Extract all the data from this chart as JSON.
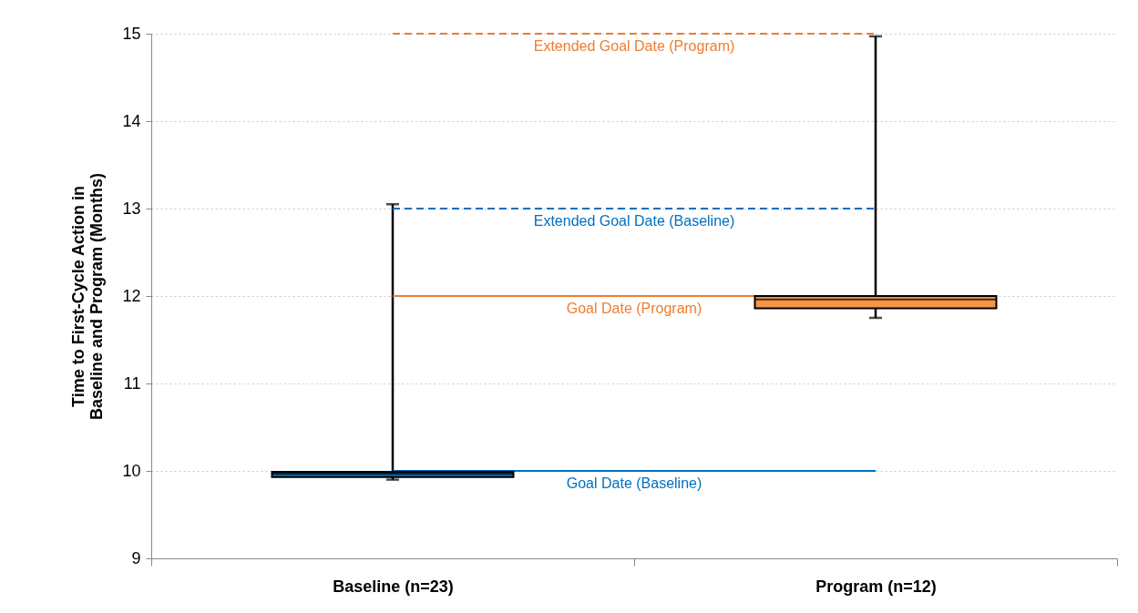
{
  "chart_data": {
    "type": "box",
    "ylabel": "Time to First-Cycle Action in Baseline and Program (Months)",
    "categories": [
      "Baseline (n=23)",
      "Program (n=12)"
    ],
    "boxes": [
      {
        "low": 9.9,
        "q1": 9.93,
        "median": 9.97,
        "q3": 9.99,
        "high": 13.05
      },
      {
        "low": 11.75,
        "q1": 11.86,
        "median": 11.96,
        "q3": 12.0,
        "high": 14.97
      }
    ],
    "colors": [
      "#0070c0",
      "#f79646"
    ],
    "ylim": [
      9,
      15
    ],
    "yticks": [
      9,
      10,
      11,
      12,
      13,
      14,
      15
    ],
    "grid": "y",
    "ref_lines": [
      {
        "axis": "y",
        "value": 15,
        "label": "Extended Goal Date (Program)",
        "color": "#ed7d31",
        "line_style": "dashed"
      },
      {
        "axis": "y",
        "value": 13,
        "label": "Extended Goal Date (Baseline)",
        "color": "#0070c0",
        "line_style": "dashed"
      },
      {
        "axis": "y",
        "value": 12,
        "label": "Goal Date (Program)",
        "color": "#ed7d31",
        "line_style": "solid"
      },
      {
        "axis": "y",
        "value": 10,
        "label": "Goal Date (Baseline)",
        "color": "#0070c0",
        "line_style": "solid"
      }
    ]
  }
}
